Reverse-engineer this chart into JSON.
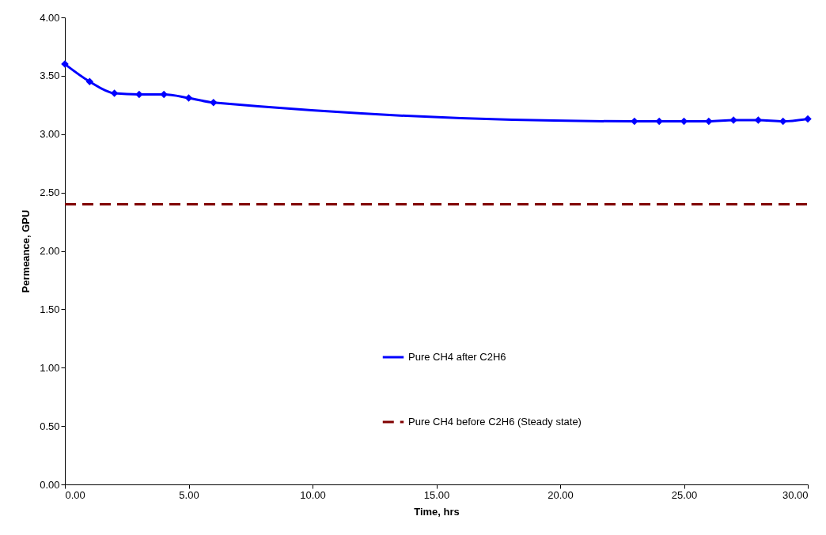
{
  "chart_data": {
    "type": "line",
    "xlabel": "Time, hrs",
    "ylabel": "Permeance, GPU",
    "series": [
      {
        "name": "Pure CH4 after C2H6",
        "color": "#0000ff",
        "marker": "diamond",
        "line_style": "solid",
        "x": [
          0,
          1,
          2,
          3,
          4,
          5,
          6,
          23,
          24,
          25,
          26,
          27,
          28,
          29,
          30
        ],
        "values": [
          3.6,
          3.45,
          3.35,
          3.34,
          3.34,
          3.31,
          3.27,
          3.11,
          3.11,
          3.11,
          3.11,
          3.12,
          3.12,
          3.11,
          3.13
        ]
      },
      {
        "name": "Pure CH4 before C2H6 (Steady state)",
        "color": "#800000",
        "marker": "none",
        "line_style": "dashed",
        "x": [
          0,
          30
        ],
        "values": [
          2.4,
          2.4
        ]
      }
    ],
    "xlim": [
      0,
      30
    ],
    "ylim": [
      0,
      4
    ],
    "xticks": [
      {
        "value": 0,
        "label": "0.00"
      },
      {
        "value": 5,
        "label": "5.00"
      },
      {
        "value": 10,
        "label": "10.00"
      },
      {
        "value": 15,
        "label": "15.00"
      },
      {
        "value": 20,
        "label": "20.00"
      },
      {
        "value": 25,
        "label": "25.00"
      },
      {
        "value": 30,
        "label": "30.00"
      }
    ],
    "yticks": [
      {
        "value": 0,
        "label": "0.00"
      },
      {
        "value": 0.5,
        "label": "0.50"
      },
      {
        "value": 1,
        "label": "1.00"
      },
      {
        "value": 1.5,
        "label": "1.50"
      },
      {
        "value": 2,
        "label": "2.00"
      },
      {
        "value": 2.5,
        "label": "2.50"
      },
      {
        "value": 3,
        "label": "3.00"
      },
      {
        "value": 3.5,
        "label": "3.50"
      },
      {
        "value": 4,
        "label": "4.00"
      }
    ],
    "grid": false,
    "legend": "bottom"
  }
}
